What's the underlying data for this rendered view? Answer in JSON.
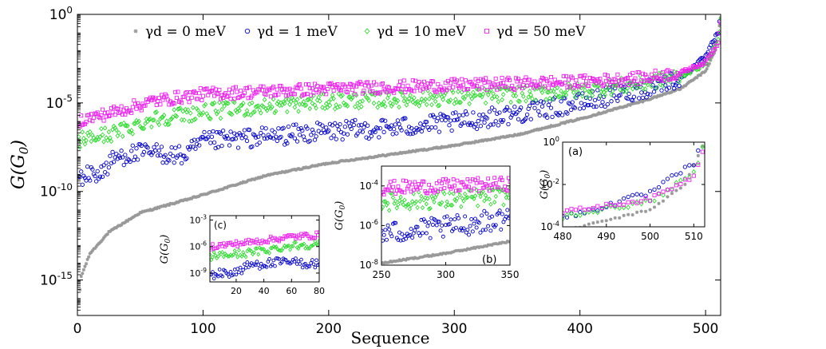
{
  "chart_data": [
    {
      "id": "main",
      "type": "scatter",
      "xlabel": "Sequence",
      "ylabel": "G(G0)",
      "ylabel_base": "G(G",
      "ylabel_sub": "0",
      "ylabel_close": ")",
      "xlim": [
        0,
        512
      ],
      "ylim_log10": [
        -17,
        0
      ],
      "y_scale": "log",
      "xticks": [
        0,
        100,
        200,
        300,
        400,
        500
      ],
      "xtick_labels": [
        "0",
        "100",
        "200",
        "300",
        "400",
        "500"
      ],
      "yticks_log10": [
        0,
        -5,
        -10,
        -15
      ],
      "ytick_labels": [
        {
          "base": "10",
          "exp": "0"
        },
        {
          "base": "10",
          "exp": "-5"
        },
        {
          "base": "10",
          "exp": "-10"
        },
        {
          "base": "10",
          "exp": "-15"
        }
      ],
      "legend_position": "top",
      "series": [
        {
          "name": "γd = 0 meV",
          "marker": "star",
          "color": "#999999",
          "trend_log10": [
            [
              1,
              -16.3
            ],
            [
              3,
              -14.8
            ],
            [
              10,
              -13.5
            ],
            [
              25,
              -12.3
            ],
            [
              50,
              -11.2
            ],
            [
              90,
              -10.4
            ],
            [
              150,
              -9.1
            ],
            [
              200,
              -8.4
            ],
            [
              250,
              -7.9
            ],
            [
              300,
              -7.4
            ],
            [
              350,
              -6.8
            ],
            [
              400,
              -5.9
            ],
            [
              450,
              -4.9
            ],
            [
              480,
              -4.2
            ],
            [
              500,
              -3.2
            ],
            [
              508,
              -2.0
            ],
            [
              512,
              -0.2
            ]
          ]
        },
        {
          "name": "γd = 1 meV",
          "marker": "circle",
          "color": "#0000cc",
          "trend_log10": [
            [
              1,
              -9.2
            ],
            [
              20,
              -8.9
            ],
            [
              30,
              -8.1
            ],
            [
              40,
              -7.9
            ],
            [
              60,
              -7.8
            ],
            [
              85,
              -8.0
            ],
            [
              100,
              -7.2
            ],
            [
              150,
              -6.9
            ],
            [
              200,
              -6.6
            ],
            [
              250,
              -6.4
            ],
            [
              300,
              -6.1
            ],
            [
              350,
              -5.6
            ],
            [
              400,
              -5.0
            ],
            [
              450,
              -4.2
            ],
            [
              480,
              -3.6
            ],
            [
              500,
              -2.4
            ],
            [
              510,
              -1.0
            ],
            [
              512,
              0.0
            ]
          ]
        },
        {
          "name": "γd = 10 meV",
          "marker": "diamond",
          "color": "#33dd33",
          "trend_log10": [
            [
              1,
              -7.1
            ],
            [
              30,
              -6.7
            ],
            [
              60,
              -5.9
            ],
            [
              100,
              -5.5
            ],
            [
              200,
              -4.9
            ],
            [
              300,
              -4.7
            ],
            [
              400,
              -4.3
            ],
            [
              450,
              -3.9
            ],
            [
              480,
              -3.5
            ],
            [
              500,
              -2.8
            ],
            [
              510,
              -1.5
            ],
            [
              512,
              -0.3
            ]
          ]
        },
        {
          "name": "γd = 50 meV",
          "marker": "square",
          "color": "#ee22ee",
          "trend_log10": [
            [
              1,
              -6.0
            ],
            [
              30,
              -5.5
            ],
            [
              60,
              -4.9
            ],
            [
              100,
              -4.5
            ],
            [
              200,
              -4.2
            ],
            [
              300,
              -4.0
            ],
            [
              400,
              -3.8
            ],
            [
              450,
              -3.6
            ],
            [
              480,
              -3.3
            ],
            [
              500,
              -2.7
            ],
            [
              510,
              -1.6
            ],
            [
              512,
              -0.4
            ]
          ]
        }
      ]
    },
    {
      "id": "inset-a",
      "type": "scatter",
      "panel_label": "(a)",
      "ylabel": "G(G0)",
      "xlim": [
        480,
        512.5
      ],
      "ylim_log10": [
        -4,
        0
      ],
      "xticks": [
        480,
        490,
        500,
        510
      ],
      "xtick_labels": [
        "480",
        "490",
        "500",
        "510"
      ],
      "yticks_log10": [
        0,
        -2,
        -4
      ],
      "ytick_labels": [
        {
          "base": "10",
          "exp": "0"
        },
        {
          "base": "10",
          "exp": "-2"
        },
        {
          "base": "10",
          "exp": "-4"
        }
      ]
    },
    {
      "id": "inset-b",
      "type": "scatter",
      "panel_label": "(b)",
      "ylabel": "G(G0)",
      "xlim": [
        250,
        350
      ],
      "ylim_log10": [
        -8,
        -3
      ],
      "xticks": [
        250,
        300,
        350
      ],
      "xtick_labels": [
        "250",
        "300",
        "350"
      ],
      "yticks_log10": [
        -4,
        -6,
        -8
      ],
      "ytick_labels": [
        {
          "base": "10",
          "exp": "-4"
        },
        {
          "base": "10",
          "exp": "-6"
        },
        {
          "base": "10",
          "exp": "-8"
        }
      ]
    },
    {
      "id": "inset-c",
      "type": "scatter",
      "panel_label": "(c)",
      "ylabel": "G(G0)",
      "xlim": [
        1,
        80
      ],
      "ylim_log10": [
        -10,
        -2.5
      ],
      "xticks": [
        20,
        40,
        60,
        80
      ],
      "xtick_labels": [
        "20",
        "40",
        "60",
        "80"
      ],
      "yticks_log10": [
        -3,
        -6,
        -9
      ],
      "ytick_labels": [
        {
          "base": "10",
          "exp": "-3"
        },
        {
          "base": "10",
          "exp": "-6"
        },
        {
          "base": "10",
          "exp": "-9"
        }
      ]
    }
  ]
}
